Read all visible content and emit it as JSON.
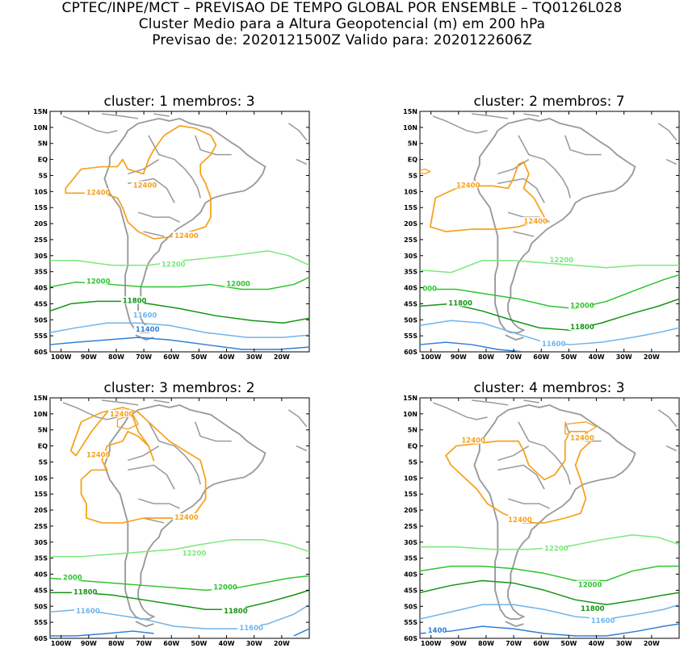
{
  "header": {
    "line1": "CPTEC/INPE/MCT – PREVISAO DE TEMPO GLOBAL POR ENSEMBLE – TQ0126L028",
    "line2": "Cluster Medio para a Altura Geopotencial (m) em 200 hPa",
    "line3": "Previsao de: 2020121500Z    Valido para: 2020122606Z"
  },
  "axes": {
    "lat_labels": [
      "15N",
      "10N",
      "5N",
      "EQ",
      "5S",
      "10S",
      "15S",
      "20S",
      "25S",
      "30S",
      "35S",
      "40S",
      "45S",
      "50S",
      "55S",
      "60S"
    ],
    "lon_labels": [
      "100W",
      "90W",
      "80W",
      "70W",
      "60W",
      "50W",
      "40W",
      "30W",
      "20W"
    ]
  },
  "contour_colors": {
    "12400": "#f5a21e",
    "12200": "#7be87b",
    "12000": "#2ec42e",
    "11800": "#149414",
    "11600": "#6fb4ec",
    "11400": "#2f7fd8"
  },
  "panels": [
    {
      "title": "cluster: 1   membros: 3",
      "labels": [
        {
          "text": "12400",
          "c": "12400"
        },
        {
          "text": "12400",
          "c": "12400"
        },
        {
          "text": "12400",
          "c": "12400"
        },
        {
          "text": "12200",
          "c": "12200"
        },
        {
          "text": "12000",
          "c": "12000"
        },
        {
          "text": "12000",
          "c": "12000"
        },
        {
          "text": "11800",
          "c": "11800"
        },
        {
          "text": "11600",
          "c": "11600"
        },
        {
          "text": "11400",
          "c": "11400"
        }
      ]
    },
    {
      "title": "cluster: 2   membros: 7",
      "labels": [
        {
          "text": "12400",
          "c": "12400"
        },
        {
          "text": "12400",
          "c": "12400"
        },
        {
          "text": "12200",
          "c": "12200"
        },
        {
          "text": "000",
          "c": "12000"
        },
        {
          "text": "12000",
          "c": "12000"
        },
        {
          "text": "11800",
          "c": "11800"
        },
        {
          "text": "11800",
          "c": "11800"
        },
        {
          "text": "11600",
          "c": "11600"
        }
      ]
    },
    {
      "title": "cluster: 3   membros: 2",
      "labels": [
        {
          "text": "12400",
          "c": "12400"
        },
        {
          "text": "12400",
          "c": "12400"
        },
        {
          "text": "12400",
          "c": "12400"
        },
        {
          "text": "12200",
          "c": "12200"
        },
        {
          "text": "2000",
          "c": "12000"
        },
        {
          "text": "12000",
          "c": "12000"
        },
        {
          "text": "11800",
          "c": "11800"
        },
        {
          "text": "11800",
          "c": "11800"
        },
        {
          "text": "11600",
          "c": "11600"
        },
        {
          "text": "11600",
          "c": "11600"
        }
      ]
    },
    {
      "title": "cluster: 4   membros: 3",
      "labels": [
        {
          "text": "12400",
          "c": "12400"
        },
        {
          "text": "12400",
          "c": "12400"
        },
        {
          "text": "12400",
          "c": "12400"
        },
        {
          "text": "12200",
          "c": "12200"
        },
        {
          "text": "12000",
          "c": "12000"
        },
        {
          "text": "11800",
          "c": "11800"
        },
        {
          "text": "11600",
          "c": "11600"
        },
        {
          "text": "1400",
          "c": "11400"
        }
      ]
    }
  ]
}
